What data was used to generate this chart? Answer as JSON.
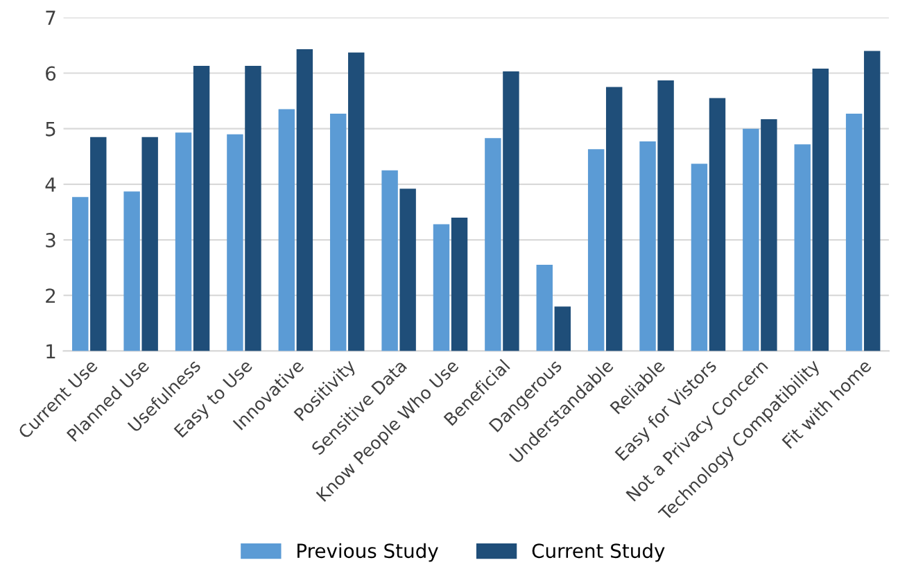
{
  "chart_data": {
    "type": "bar",
    "categories": [
      "Current Use",
      "Planned Use",
      "Usefulness",
      "Easy to Use",
      "Innovative",
      "Positivity",
      "Sensitive Data",
      "Know People Who Use",
      "Beneficial",
      "Dangerous",
      "Understandable",
      "Reliable",
      "Easy for Vistors",
      "Not a Privacy Concern",
      "Technology Compatibility",
      "Fit with home"
    ],
    "series": [
      {
        "name": "Previous Study",
        "color": "#5b9bd5",
        "values": [
          3.77,
          3.87,
          4.93,
          4.9,
          5.35,
          5.27,
          4.25,
          3.28,
          4.83,
          2.55,
          4.63,
          4.77,
          4.37,
          5.0,
          4.72,
          5.27
        ]
      },
      {
        "name": "Current Study",
        "color": "#1f4e79",
        "values": [
          4.85,
          4.85,
          6.13,
          6.13,
          6.43,
          6.37,
          3.92,
          3.4,
          6.03,
          1.8,
          5.75,
          5.87,
          5.55,
          5.17,
          6.08,
          6.4
        ]
      }
    ],
    "ylim": [
      1,
      7
    ],
    "yticks": [
      1,
      2,
      3,
      4,
      5,
      6,
      7
    ],
    "grid": "y",
    "legend": "bottom"
  }
}
